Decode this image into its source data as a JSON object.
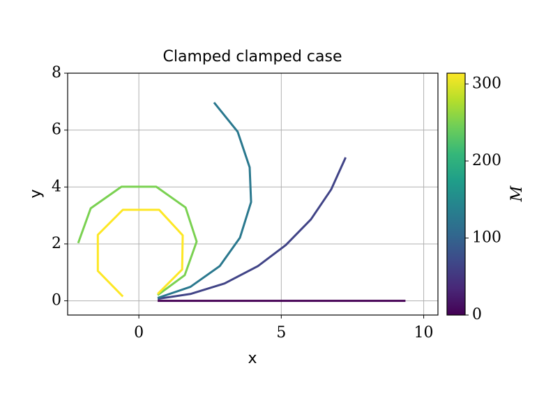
{
  "chart_data": {
    "type": "line",
    "title": "Clamped clamped case",
    "x_label": "x",
    "y_label": "y",
    "xlim": [
      -2.5,
      10.5
    ],
    "xticks": [
      0,
      5,
      10
    ],
    "ylim": [
      -0.5,
      8
    ],
    "yticks": [
      0,
      2,
      4,
      6,
      8
    ],
    "grid": true,
    "series": [
      {
        "color": "#440154",
        "x": [
          0.66,
          1.53,
          2.4,
          3.27,
          4.14,
          5.01,
          5.88,
          6.75,
          7.62,
          8.49,
          9.36
        ],
        "values": [
          0,
          0,
          0,
          0,
          0,
          0,
          0,
          0,
          0,
          0,
          0
        ]
      },
      {
        "color": "#414487",
        "x": [
          0.66,
          1.81,
          3.01,
          4.18,
          5.16,
          6.04,
          6.75,
          7.26
        ],
        "values": [
          0.07,
          0.24,
          0.61,
          1.22,
          1.96,
          2.86,
          3.91,
          5.04
        ]
      },
      {
        "color": "#2a788e",
        "x": [
          0.66,
          1.81,
          2.84,
          3.55,
          3.94,
          3.89,
          3.47,
          2.64
        ],
        "values": [
          0.1,
          0.49,
          1.22,
          2.22,
          3.47,
          4.69,
          5.94,
          6.97
        ]
      },
      {
        "color": "#7ad151",
        "x": [
          0.66,
          1.61,
          2.03,
          1.64,
          0.61,
          -0.61,
          -1.69,
          -2.13
        ],
        "values": [
          0.2,
          0.9,
          2.08,
          3.28,
          4.01,
          4.01,
          3.25,
          2.03
        ]
      },
      {
        "color": "#fde725",
        "x": [
          0.66,
          1.52,
          1.54,
          0.71,
          -0.56,
          -1.44,
          -1.44,
          -0.56
        ],
        "values": [
          0.24,
          1.1,
          2.3,
          3.2,
          3.2,
          2.32,
          1.05,
          0.15
        ]
      }
    ],
    "colorbar": {
      "label": "M",
      "colormap": "viridis",
      "lim": [
        0,
        314
      ],
      "ticks": [
        0,
        100,
        200,
        300
      ]
    }
  }
}
